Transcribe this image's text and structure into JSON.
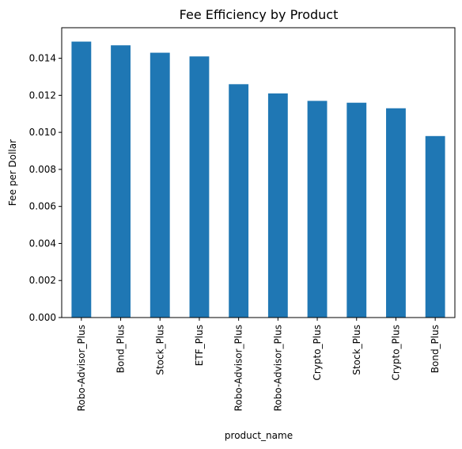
{
  "chart_data": {
    "type": "bar",
    "title": "Fee Efficiency by Product",
    "xlabel": "product_name",
    "ylabel": "Fee per Dollar",
    "categories": [
      "Robo-Advisor_Plus",
      "Bond_Plus",
      "Stock_Plus",
      "ETF_Plus",
      "Robo-Advisor_Plus",
      "Robo-Advisor_Plus",
      "Crypto_Plus",
      "Stock_Plus",
      "Crypto_Plus",
      "Bond_Plus"
    ],
    "values": [
      0.0149,
      0.0147,
      0.0143,
      0.0141,
      0.0126,
      0.0121,
      0.0117,
      0.0116,
      0.0113,
      0.0098
    ],
    "ylim": [
      0,
      0.01565
    ],
    "yticks": [
      0,
      0.002,
      0.004,
      0.006,
      0.008,
      0.01,
      0.012,
      0.014
    ],
    "ytick_labels": [
      "0.000",
      "0.002",
      "0.004",
      "0.006",
      "0.008",
      "0.010",
      "0.012",
      "0.014"
    ],
    "bar_color": "#1f77b4",
    "grid": false,
    "legend": "none"
  }
}
